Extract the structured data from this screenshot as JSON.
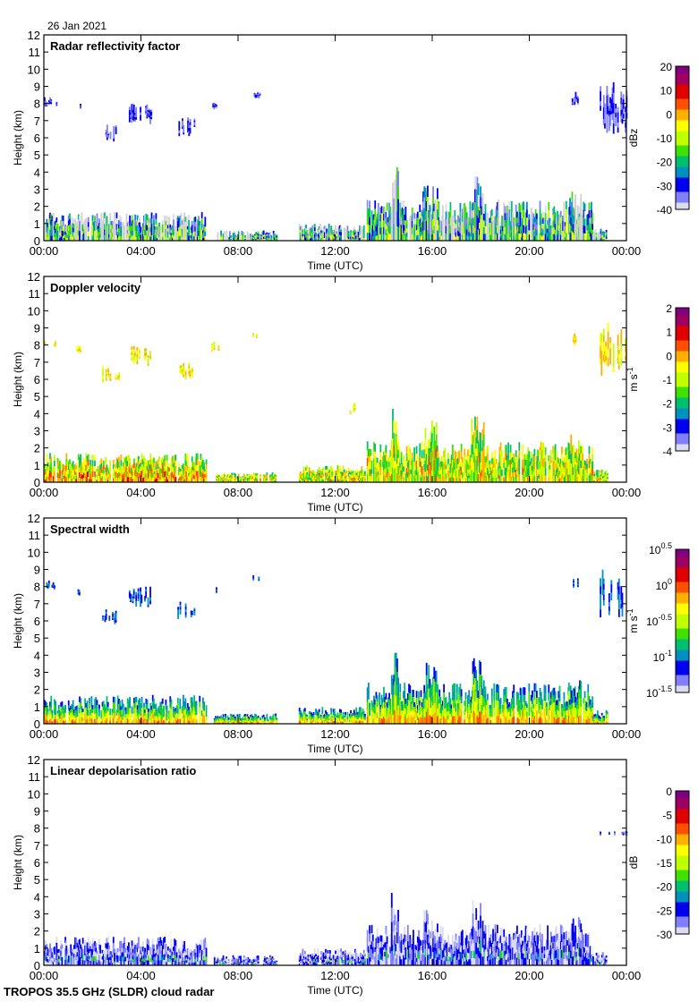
{
  "date": "26 Jan 2021",
  "footer": "TROPOS 35.5 GHz (SLDR) cloud radar",
  "chart_data": [
    {
      "type": "heatmap",
      "title": "Radar reflectivity factor",
      "xlabel": "Time (UTC)",
      "ylabel": "Height (km)",
      "x_ticks": [
        "00:00",
        "04:00",
        "08:00",
        "12:00",
        "16:00",
        "20:00",
        "00:00"
      ],
      "y_ticks": [
        "0",
        "1",
        "2",
        "3",
        "4",
        "5",
        "6",
        "7",
        "8",
        "9",
        "10",
        "11",
        "12"
      ],
      "ylim": [
        0,
        12
      ],
      "colorbar": {
        "unit": "dBz",
        "ticks": [
          "20",
          "10",
          "0",
          "-10",
          "-20",
          "-30",
          "-40"
        ],
        "range": [
          -40,
          20
        ]
      },
      "style": "mixed"
    },
    {
      "type": "heatmap",
      "title": "Doppler velocity",
      "xlabel": "Time (UTC)",
      "ylabel": "Height (km)",
      "x_ticks": [
        "00:00",
        "04:00",
        "08:00",
        "12:00",
        "16:00",
        "20:00",
        "00:00"
      ],
      "y_ticks": [
        "0",
        "1",
        "2",
        "3",
        "4",
        "5",
        "6",
        "7",
        "8",
        "9",
        "10",
        "11",
        "12"
      ],
      "ylim": [
        0,
        12
      ],
      "colorbar": {
        "unit": "m s-1",
        "ticks": [
          "2",
          "1",
          "0",
          "-1",
          "-2",
          "-3",
          "-4"
        ],
        "range": [
          -4,
          2
        ]
      },
      "style": "warm"
    },
    {
      "type": "heatmap",
      "title": "Spectral width",
      "xlabel": "Time (UTC)",
      "ylabel": "Height (km)",
      "x_ticks": [
        "00:00",
        "04:00",
        "08:00",
        "12:00",
        "16:00",
        "20:00",
        "00:00"
      ],
      "y_ticks": [
        "0",
        "1",
        "2",
        "3",
        "4",
        "5",
        "6",
        "7",
        "8",
        "9",
        "10",
        "11",
        "12"
      ],
      "ylim": [
        0,
        12
      ],
      "colorbar": {
        "unit": "m s-1",
        "ticks": [
          "10^0.5",
          "10^0",
          "10^-0.5",
          "10^-1",
          "10^-1.5"
        ],
        "scale": "log",
        "range": [
          -1.5,
          0.5
        ]
      },
      "style": "width"
    },
    {
      "type": "heatmap",
      "title": "Linear depolarisation ratio",
      "xlabel": "Time (UTC)",
      "ylabel": "Height (km)",
      "x_ticks": [
        "00:00",
        "04:00",
        "08:00",
        "12:00",
        "16:00",
        "20:00",
        "00:00"
      ],
      "y_ticks": [
        "0",
        "1",
        "2",
        "3",
        "4",
        "5",
        "6",
        "7",
        "8",
        "9",
        "10",
        "11",
        "12"
      ],
      "ylim": [
        0,
        12
      ],
      "colorbar": {
        "unit": "dB",
        "ticks": [
          "0",
          "-5",
          "-10",
          "-15",
          "-20",
          "-25",
          "-30"
        ],
        "range": [
          -30,
          0
        ]
      },
      "style": "ldr"
    }
  ],
  "echo_regions": [
    {
      "start_h": 0.0,
      "end_h": 6.7,
      "base_km": 0,
      "top_km": 1.7,
      "kind": "low"
    },
    {
      "start_h": 7.0,
      "end_h": 9.6,
      "base_km": 0,
      "top_km": 0.6,
      "kind": "low"
    },
    {
      "start_h": 10.5,
      "end_h": 13.2,
      "base_km": 0,
      "top_km": 1.0,
      "kind": "low"
    },
    {
      "start_h": 13.3,
      "end_h": 22.6,
      "base_km": 0,
      "top_km": 2.4,
      "kind": "low"
    },
    {
      "start_h": 14.3,
      "end_h": 14.6,
      "base_km": 0,
      "top_km": 4.3,
      "kind": "low"
    },
    {
      "start_h": 15.6,
      "end_h": 16.2,
      "base_km": 0,
      "top_km": 3.6,
      "kind": "low"
    },
    {
      "start_h": 17.6,
      "end_h": 18.1,
      "base_km": 0,
      "top_km": 3.9,
      "kind": "low"
    },
    {
      "start_h": 21.6,
      "end_h": 22.1,
      "base_km": 0,
      "top_km": 2.9,
      "kind": "low"
    },
    {
      "start_h": 22.6,
      "end_h": 23.2,
      "base_km": 0,
      "top_km": 0.8,
      "kind": "low"
    },
    {
      "start_h": 0.0,
      "end_h": 0.5,
      "base_km": 7.8,
      "top_km": 8.4,
      "kind": "high"
    },
    {
      "start_h": 1.3,
      "end_h": 1.5,
      "base_km": 7.5,
      "top_km": 8.0,
      "kind": "high"
    },
    {
      "start_h": 2.4,
      "end_h": 3.1,
      "base_km": 5.8,
      "top_km": 6.8,
      "kind": "high"
    },
    {
      "start_h": 3.5,
      "end_h": 4.4,
      "base_km": 6.8,
      "top_km": 8.0,
      "kind": "high"
    },
    {
      "start_h": 5.5,
      "end_h": 6.2,
      "base_km": 6.0,
      "top_km": 7.2,
      "kind": "high"
    },
    {
      "start_h": 6.9,
      "end_h": 7.2,
      "base_km": 7.6,
      "top_km": 8.2,
      "kind": "high"
    },
    {
      "start_h": 8.6,
      "end_h": 8.9,
      "base_km": 8.3,
      "top_km": 8.7,
      "kind": "high"
    },
    {
      "start_h": 12.6,
      "end_h": 12.8,
      "base_km": 3.8,
      "top_km": 4.6,
      "kind": "high"
    },
    {
      "start_h": 21.7,
      "end_h": 22.0,
      "base_km": 7.9,
      "top_km": 8.7,
      "kind": "high"
    },
    {
      "start_h": 22.9,
      "end_h": 24.0,
      "base_km": 6.2,
      "top_km": 9.3,
      "kind": "high"
    }
  ],
  "colormap": [
    "#dcdcf0",
    "#8080ff",
    "#0000f0",
    "#0090c0",
    "#00c070",
    "#40e000",
    "#c0ff00",
    "#ffff00",
    "#ffb000",
    "#ff5000",
    "#e00000",
    "#a00060",
    "#800080"
  ],
  "clutter_color": "#d0d0d0"
}
